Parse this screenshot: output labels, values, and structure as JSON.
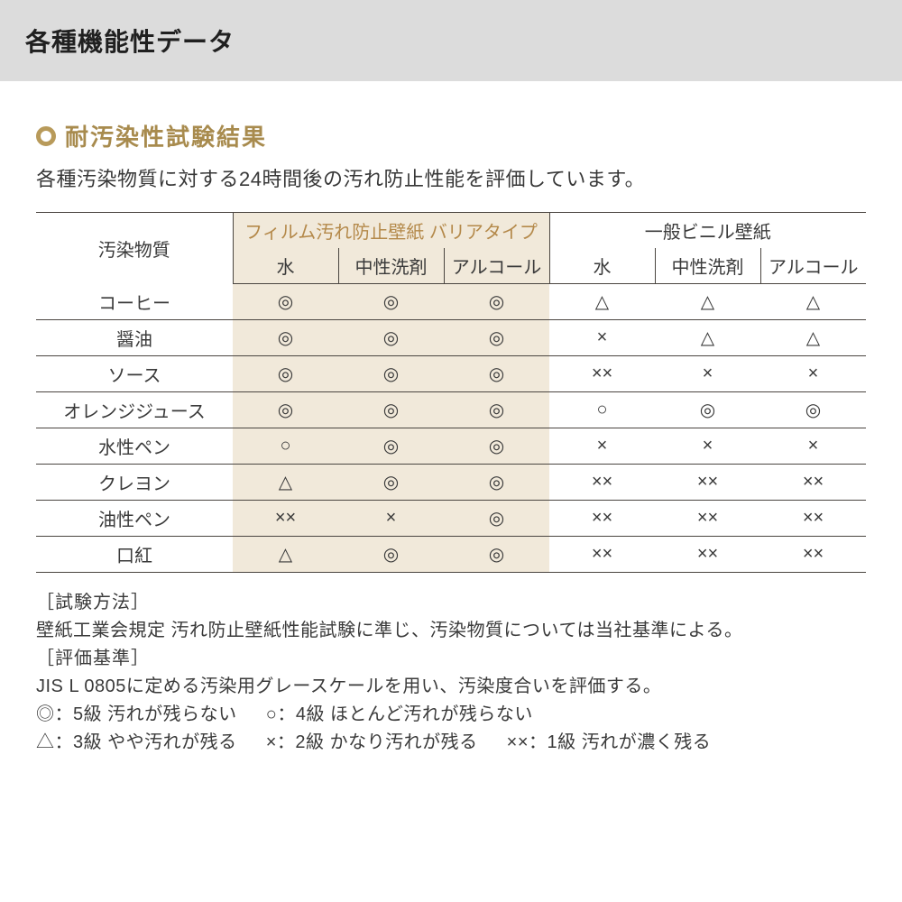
{
  "colors": {
    "header_bg": "#dcdcdc",
    "accent": "#b89a5a",
    "accent_text": "#a88b4e",
    "tan_bg": "#f1e9da",
    "border": "#4a4540",
    "body_text": "#333333",
    "page_bg": "#ffffff"
  },
  "header": {
    "title": "各種機能性データ"
  },
  "section": {
    "title": "耐汚染性試験結果",
    "description": "各種汚染物質に対する24時間後の汚れ防止性能を評価しています。"
  },
  "table": {
    "corner_label": "汚染物質",
    "group_a": {
      "title": "フィルム汚れ防止壁紙 バリアタイプ",
      "sub": [
        "水",
        "中性洗剤",
        "アルコール"
      ]
    },
    "group_b": {
      "title": "一般ビニル壁紙",
      "sub": [
        "水",
        "中性洗剤",
        "アルコール"
      ]
    },
    "rows": [
      {
        "label": "コーヒー",
        "a": [
          "◎",
          "◎",
          "◎"
        ],
        "b": [
          "△",
          "△",
          "△"
        ]
      },
      {
        "label": "醤油",
        "a": [
          "◎",
          "◎",
          "◎"
        ],
        "b": [
          "×",
          "△",
          "△"
        ]
      },
      {
        "label": "ソース",
        "a": [
          "◎",
          "◎",
          "◎"
        ],
        "b": [
          "××",
          "×",
          "×"
        ]
      },
      {
        "label": "オレンジジュース",
        "a": [
          "◎",
          "◎",
          "◎"
        ],
        "b": [
          "○",
          "◎",
          "◎"
        ]
      },
      {
        "label": "水性ペン",
        "a": [
          "○",
          "◎",
          "◎"
        ],
        "b": [
          "×",
          "×",
          "×"
        ]
      },
      {
        "label": "クレヨン",
        "a": [
          "△",
          "◎",
          "◎"
        ],
        "b": [
          "××",
          "××",
          "××"
        ]
      },
      {
        "label": "油性ペン",
        "a": [
          "××",
          "×",
          "◎"
        ],
        "b": [
          "××",
          "××",
          "××"
        ]
      },
      {
        "label": "口紅",
        "a": [
          "△",
          "◎",
          "◎"
        ],
        "b": [
          "××",
          "××",
          "××"
        ]
      }
    ]
  },
  "notes": {
    "method_label": "［試験方法］",
    "method_text": "壁紙工業会規定 汚れ防止壁紙性能試験に準じ、汚染物質については当社基準による。",
    "criteria_label": "［評価基準］",
    "criteria_text": "JIS L 0805に定める汚染用グレースケールを用い、汚染度合いを評価する。",
    "legend_line1": [
      "◎：5級 汚れが残らない",
      "○：4級 ほとんど汚れが残らない"
    ],
    "legend_line2": [
      "△：3級 やや汚れが残る",
      "×：2級 かなり汚れが残る",
      "××：1級 汚れが濃く残る"
    ]
  }
}
